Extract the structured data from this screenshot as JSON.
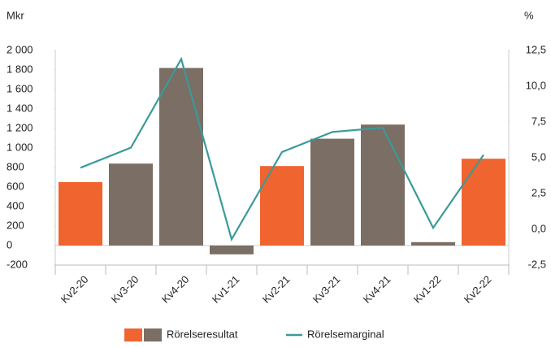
{
  "chart_data": {
    "type": "bar-line",
    "y_label": "Mkr",
    "y2_label": "%",
    "categories": [
      "Kv2-20",
      "Kv3-20",
      "Kv4-20",
      "Kv1-21",
      "Kv2-21",
      "Kv3-21",
      "Kv4-21",
      "Kv1-22",
      "Kv2-22"
    ],
    "series": [
      {
        "name": "Rörelseresultat",
        "type": "bar",
        "colors": [
          "#f0642f",
          "#7b6e64",
          "#7b6e64",
          "#7b6e64",
          "#f0642f",
          "#7b6e64",
          "#7b6e64",
          "#7b6e64",
          "#f0642f"
        ],
        "values": [
          650,
          840,
          1820,
          -90,
          815,
          1095,
          1240,
          35,
          890
        ]
      },
      {
        "name": "Rörelsemarginal",
        "type": "line",
        "axis": "y2",
        "color": "#3a9a9a",
        "values": [
          4.3,
          5.7,
          11.9,
          -0.7,
          5.4,
          6.8,
          7.1,
          0.1,
          5.2
        ]
      }
    ],
    "ylim": [
      -200,
      2000
    ],
    "yticks": [
      -200,
      0,
      200,
      400,
      600,
      800,
      {
        "value": 1000,
        "label": "1 000"
      },
      {
        "value": 1200,
        "label": "1 200"
      },
      {
        "value": 1400,
        "label": "1 400"
      },
      {
        "value": 1600,
        "label": "1 600"
      },
      {
        "value": 1800,
        "label": "1 800"
      },
      {
        "value": 2000,
        "label": "2 000"
      }
    ],
    "y2lim": [
      -2.5,
      12.5
    ],
    "y2ticks": [
      {
        "value": -2.5,
        "label": "-2,5"
      },
      {
        "value": 0,
        "label": "0,0"
      },
      {
        "value": 2.5,
        "label": "2,5"
      },
      {
        "value": 5,
        "label": "5,0"
      },
      {
        "value": 7.5,
        "label": "7,5"
      },
      {
        "value": 10,
        "label": "10,0"
      },
      {
        "value": 12.5,
        "label": "12,5"
      }
    ]
  }
}
